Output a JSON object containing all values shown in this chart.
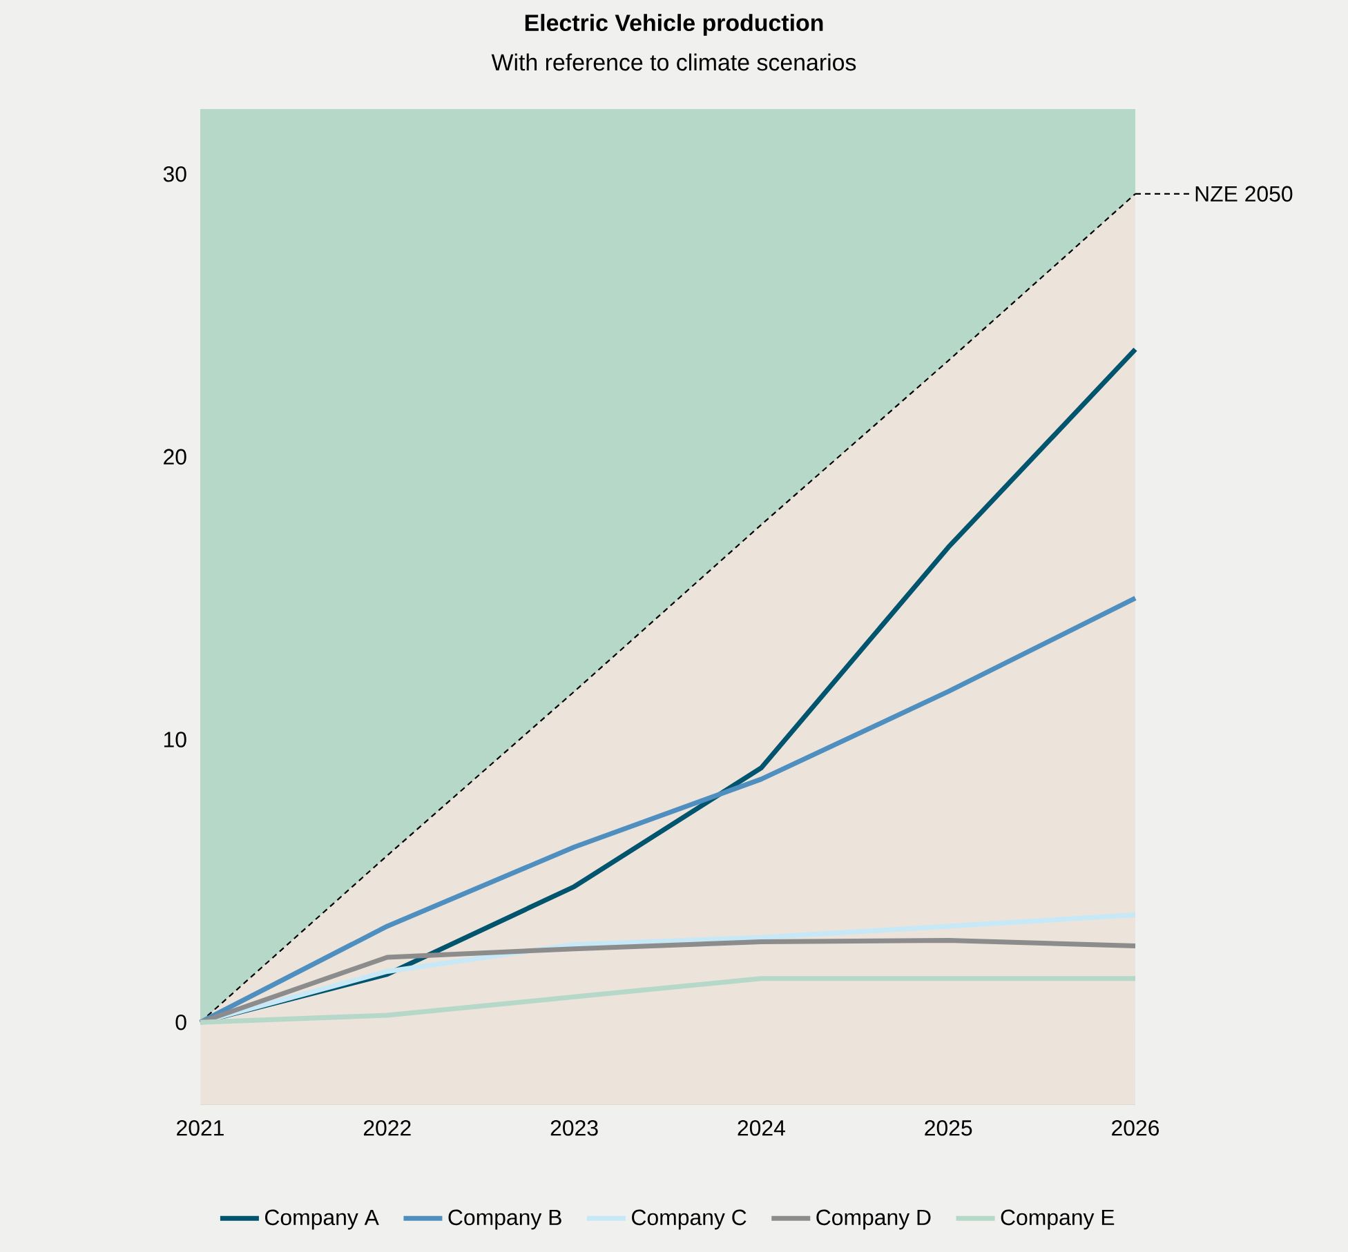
{
  "chart_data": {
    "type": "line",
    "title": "Electric Vehicle production",
    "subtitle": "With reference to climate scenarios",
    "x": [
      2021,
      2022,
      2023,
      2024,
      2025,
      2026
    ],
    "xlim": [
      2021,
      2026
    ],
    "xticks": [
      2021,
      2022,
      2023,
      2024,
      2025,
      2026
    ],
    "ylim": [
      -2.9,
      32.3
    ],
    "yticks": [
      0,
      10,
      20,
      30
    ],
    "grid": false,
    "legend": "bottom",
    "line_style": "solid",
    "marker": "none",
    "bands": [
      {
        "axis": "y",
        "from": 0,
        "to": 32.3,
        "color": "#b5d8c8"
      },
      {
        "axis": "y",
        "from": -2.9,
        "to": 0,
        "color": "#ece3db"
      }
    ],
    "series": [
      {
        "name": "NZE 2050",
        "type": "area",
        "color": "#ece3db",
        "line_style": "dashed",
        "values": [
          0,
          5.9,
          11.7,
          17.6,
          23.4,
          29.3
        ]
      },
      {
        "name": "Company A",
        "color": "#00546e",
        "values": [
          0,
          1.7,
          4.8,
          9.0,
          16.8,
          23.8
        ]
      },
      {
        "name": "Company B",
        "color": "#4e8fc0",
        "values": [
          0,
          3.4,
          6.2,
          8.6,
          11.7,
          15.0
        ]
      },
      {
        "name": "Company C",
        "color": "#c7e8f7",
        "values": [
          0,
          1.8,
          2.75,
          3.0,
          3.4,
          3.8
        ]
      },
      {
        "name": "Company D",
        "color": "#8c8c8c",
        "values": [
          0,
          2.3,
          2.6,
          2.85,
          2.9,
          2.7
        ]
      },
      {
        "name": "Company E",
        "color": "#b5d8c8",
        "values": [
          0,
          0.25,
          0.9,
          1.55,
          1.55,
          1.55
        ]
      }
    ]
  }
}
